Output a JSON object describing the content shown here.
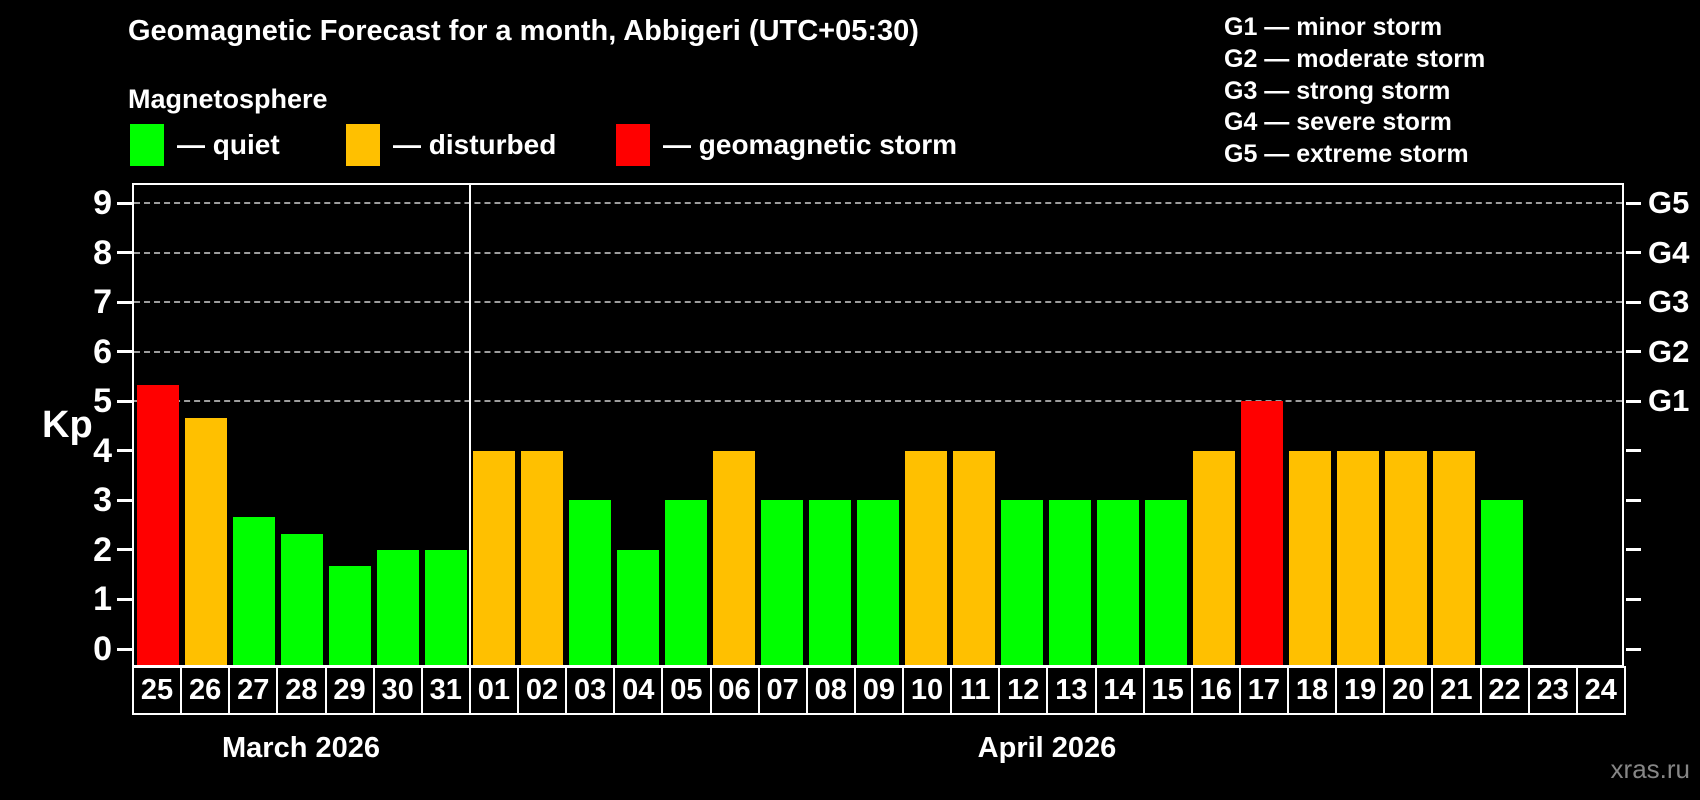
{
  "header": {
    "title": "Geomagnetic Forecast for a month, Abbigeri (UTC+05:30)",
    "subtitle": "Magnetosphere"
  },
  "legend": {
    "items": [
      {
        "key": "quiet",
        "label": "— quiet",
        "color": "#00ff00"
      },
      {
        "key": "disturbed",
        "label": "— disturbed",
        "color": "#ffc000"
      },
      {
        "key": "storm",
        "label": "— geomagnetic storm",
        "color": "#ff0000"
      }
    ]
  },
  "g_scale": {
    "items": [
      "G1 — minor storm",
      "G2 — moderate storm",
      "G3 — strong storm",
      "G4 — severe storm",
      "G5 — extreme storm"
    ]
  },
  "axes": {
    "y_title": "Kp"
  },
  "watermark": "xras.ru",
  "chart_data": {
    "type": "bar",
    "title": "Geomagnetic Forecast for a month, Abbigeri (UTC+05:30)",
    "xlabel": "",
    "ylabel": "Kp",
    "ylim": [
      0,
      9
    ],
    "y_ticks": [
      0,
      1,
      2,
      3,
      4,
      5,
      6,
      7,
      8,
      9
    ],
    "gridlines_at": [
      5,
      6,
      7,
      8,
      9
    ],
    "grid": "dashed horizontal at storm levels only",
    "legend_position": "top",
    "right_axis_labels": [
      {
        "kp": 5,
        "label": "G1"
      },
      {
        "kp": 6,
        "label": "G2"
      },
      {
        "kp": 7,
        "label": "G3"
      },
      {
        "kp": 8,
        "label": "G4"
      },
      {
        "kp": 9,
        "label": "G5"
      }
    ],
    "months": [
      {
        "label": "March 2026",
        "days": 7
      },
      {
        "label": "April 2026",
        "days": 24
      }
    ],
    "categories": [
      "25",
      "26",
      "27",
      "28",
      "29",
      "30",
      "31",
      "01",
      "02",
      "03",
      "04",
      "05",
      "06",
      "07",
      "08",
      "09",
      "10",
      "11",
      "12",
      "13",
      "14",
      "15",
      "16",
      "17",
      "18",
      "19",
      "20",
      "21",
      "22",
      "23",
      "24"
    ],
    "series": [
      {
        "name": "Kp forecast",
        "values": [
          5.33,
          4.67,
          2.67,
          2.33,
          1.67,
          2,
          2,
          4,
          4,
          3,
          2,
          3,
          4,
          3,
          3,
          3,
          4,
          4,
          3,
          3,
          3,
          3,
          4,
          5,
          4,
          4,
          4,
          4,
          3,
          null,
          null
        ],
        "status": [
          "storm",
          "disturbed",
          "quiet",
          "quiet",
          "quiet",
          "quiet",
          "quiet",
          "disturbed",
          "disturbed",
          "quiet",
          "quiet",
          "quiet",
          "disturbed",
          "quiet",
          "quiet",
          "quiet",
          "disturbed",
          "disturbed",
          "quiet",
          "quiet",
          "quiet",
          "quiet",
          "disturbed",
          "storm",
          "disturbed",
          "disturbed",
          "disturbed",
          "disturbed",
          "quiet",
          "none",
          "none"
        ]
      }
    ],
    "status_colors": {
      "quiet": "#00ff00",
      "disturbed": "#ffc000",
      "storm": "#ff0000"
    }
  }
}
